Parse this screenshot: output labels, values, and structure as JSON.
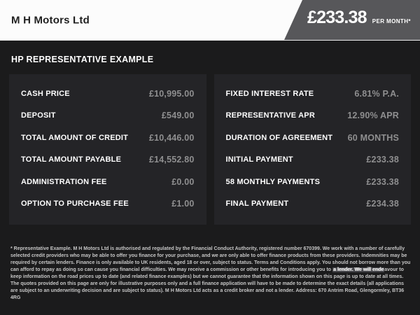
{
  "header": {
    "company_name": "M H Motors Ltd",
    "monthly_price": "£233.38",
    "per_month_label": "PER MONTH*"
  },
  "section": {
    "title": "HP REPRESENTATIVE EXAMPLE"
  },
  "finance_table": {
    "left_column": [
      {
        "label": "CASH PRICE",
        "value": "£10,995.00"
      },
      {
        "label": "DEPOSIT",
        "value": "£549.00"
      },
      {
        "label": "TOTAL AMOUNT OF CREDIT",
        "value": "£10,446.00"
      },
      {
        "label": "TOTAL AMOUNT PAYABLE",
        "value": "£14,552.80"
      },
      {
        "label": "ADMINISTRATION FEE",
        "value": "£0.00"
      },
      {
        "label": "OPTION TO PURCHASE FEE",
        "value": "£1.00"
      }
    ],
    "right_column": [
      {
        "label": "FIXED INTEREST RATE",
        "value": "6.81% P.A."
      },
      {
        "label": "REPRESENTATIVE APR",
        "value": "12.90% APR"
      },
      {
        "label": "DURATION OF AGREEMENT",
        "value": "60 MONTHS"
      },
      {
        "label": "INITIAL PAYMENT",
        "value": "£233.38"
      },
      {
        "label": "58 MONTHLY PAYMENTS",
        "value": "£233.38"
      },
      {
        "label": "FINAL PAYMENT",
        "value": "£234.38"
      }
    ]
  },
  "disclaimer": {
    "part1": "* Representative Example. M H Motors Ltd is authorised and regulated by the Financial Conduct Authority, registered number 670399. We work with a number of carefully selected credit providers who may be able to offer you finance for your purchase, and we are only able to offer finance products from these providers. Indemnities may be required by certain lenders. Finance is only available to UK residents, aged 18 or over, subject to status. Terms and Conditions apply. You should not borrow more than you can afford to repay as doing so can cause you financial difficulties. We may receive a commission or other benefits for introducing you to ",
    "glitch_segment": "a lender. We will ende",
    "part2": "avour to keep information on the road prices up to date (and related finance examples) but we cannot guarantee that the information shown on this page is up to date at all times. The quotes provided on this page are only for illustrative purposes only and a full finance application will have to be made to determine the exact details (all applications are subject to an underwriting decision and are subject to status). M H Motors Ltd acts as a credit broker and not a lender. Address: 670 Antrim Road, Glengormley, BT36 4RG"
  },
  "colors": {
    "topbar_bg": "#fcfcfc",
    "badge_bg": "#57575a",
    "page_bg": "#1b1b1c",
    "panel_bg": "#242427",
    "label_color": "#ffffff",
    "value_color": "#8f8f90",
    "disclaimer_color": "#c6c6c6"
  }
}
